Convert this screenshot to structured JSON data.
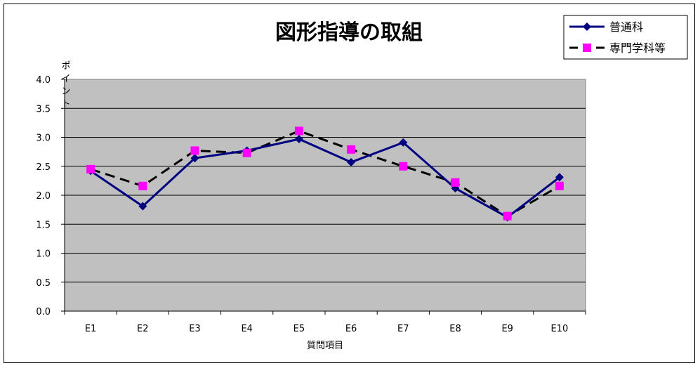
{
  "chart_data": {
    "type": "line",
    "title": "図形指導の取組",
    "xlabel": "質問項目",
    "ylabel": "ポイント",
    "categories": [
      "E1",
      "E2",
      "E3",
      "E4",
      "E5",
      "E6",
      "E7",
      "E8",
      "E9",
      "E10"
    ],
    "ylim": [
      0,
      4
    ],
    "yticks": [
      "0.0",
      "0.5",
      "1.0",
      "1.5",
      "2.0",
      "2.5",
      "3.0",
      "3.5",
      "4.0"
    ],
    "grid": true,
    "plot_background": "#c0c0c0",
    "legend_position": "top-right",
    "series": [
      {
        "name": "普通科",
        "color": "#000080",
        "line_style": "solid",
        "marker": "diamond",
        "values": [
          2.42,
          1.81,
          2.64,
          2.77,
          2.97,
          2.57,
          2.91,
          2.12,
          1.62,
          2.31
        ]
      },
      {
        "name": "専門学科等",
        "color": "#000000",
        "marker_color": "#ff00ff",
        "line_style": "dashed",
        "marker": "square",
        "values": [
          2.45,
          2.16,
          2.77,
          2.73,
          3.11,
          2.79,
          2.5,
          2.22,
          1.64,
          2.16
        ]
      }
    ]
  }
}
